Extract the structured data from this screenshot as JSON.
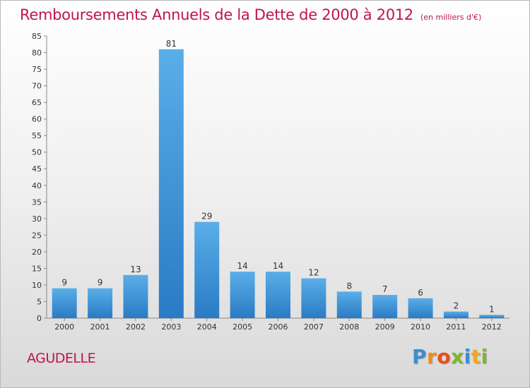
{
  "chart_data": {
    "type": "bar",
    "title": "Remboursements Annuels de la Dette de 2000 à 2012",
    "unit_note": "(en milliers d'€)",
    "categories": [
      "2000",
      "2001",
      "2002",
      "2003",
      "2004",
      "2005",
      "2006",
      "2007",
      "2008",
      "2009",
      "2010",
      "2011",
      "2012"
    ],
    "values": [
      9,
      9,
      13,
      81,
      29,
      14,
      14,
      12,
      8,
      7,
      6,
      2,
      1
    ],
    "value_labels": [
      "9",
      "9",
      "13",
      "81",
      "29",
      "14",
      "14",
      "12",
      "8",
      "7",
      "6",
      "2",
      "1"
    ],
    "ylim": [
      0,
      85
    ],
    "yticks": [
      "0",
      "5",
      "10",
      "15",
      "20",
      "25",
      "30",
      "35",
      "40",
      "45",
      "50",
      "55",
      "60",
      "65",
      "70",
      "75",
      "80",
      "85"
    ],
    "grid": false,
    "bar_color": "#3d8fd6"
  },
  "commune": "AGUDELLE",
  "logo": {
    "letters": [
      "P",
      "r",
      "o",
      "x",
      "i",
      "t",
      "i"
    ],
    "colors": [
      "#3a8fd0",
      "#f08a1c",
      "#e84e1b",
      "#7cb82f",
      "#3a8fd0",
      "#f0a81c",
      "#7cb82f"
    ]
  }
}
